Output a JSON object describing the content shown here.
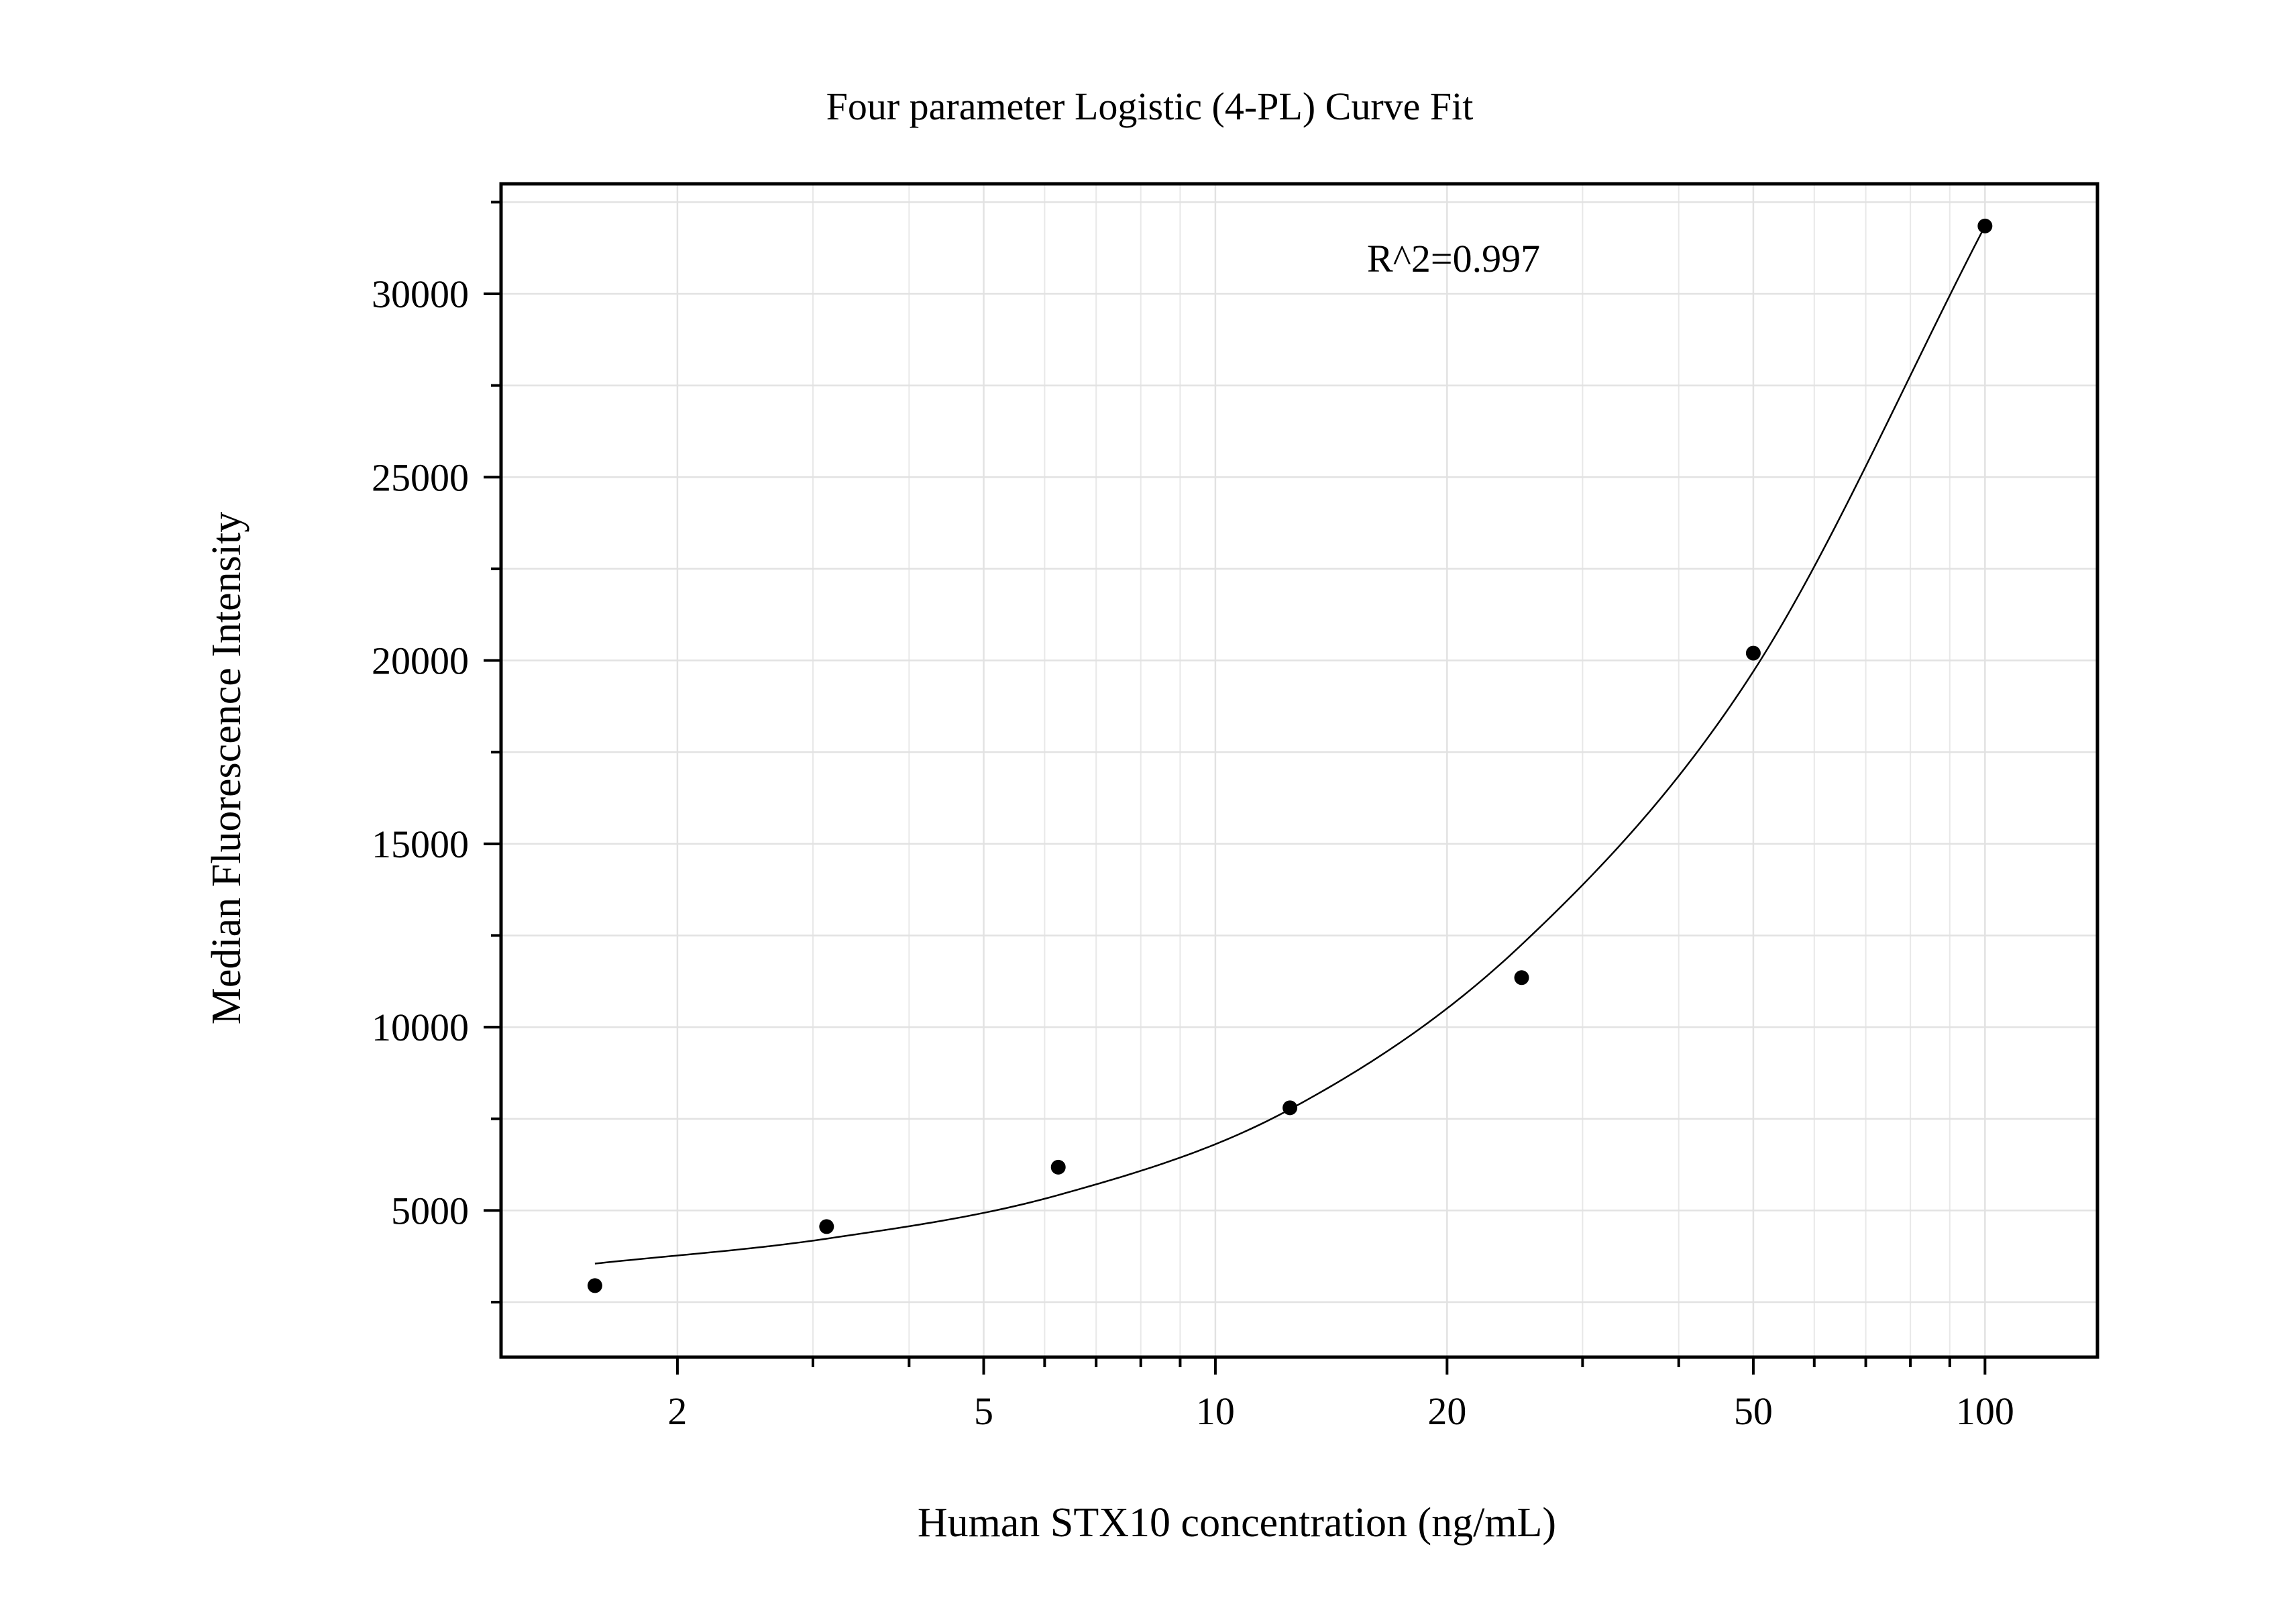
{
  "chart_data": {
    "type": "scatter",
    "title": "Four parameter Logistic (4-PL) Curve Fit",
    "xlabel": "Human STX10 concentration (ng/mL)",
    "ylabel": "Median Fluorescence Intensity",
    "x_scale": "log",
    "xlim": [
      1.18,
      140
    ],
    "ylim": [
      1000,
      33000
    ],
    "x_ticks": [
      2,
      5,
      10,
      20,
      50,
      100
    ],
    "x_tick_labels": [
      "2",
      "5",
      "10",
      "20",
      "50",
      "100"
    ],
    "y_ticks": [
      5000,
      10000,
      15000,
      20000,
      25000,
      30000
    ],
    "y_tick_labels": [
      "5000",
      "10000",
      "15000",
      "20000",
      "25000",
      "30000"
    ],
    "grid": true,
    "annotation": "R^2=0.997",
    "series": [
      {
        "type": "scatter",
        "x": [
          1.5625,
          3.125,
          6.25,
          12.5,
          25,
          50,
          100
        ],
        "y": [
          2950,
          4560,
          6180,
          7800,
          11350,
          20200,
          31850
        ]
      },
      {
        "type": "line",
        "x": [
          1.5625,
          3.125,
          6.25,
          12.5,
          25,
          50,
          100
        ],
        "y": [
          3550,
          4230,
          5420,
          7760,
          12250,
          19700,
          31850
        ]
      }
    ]
  }
}
